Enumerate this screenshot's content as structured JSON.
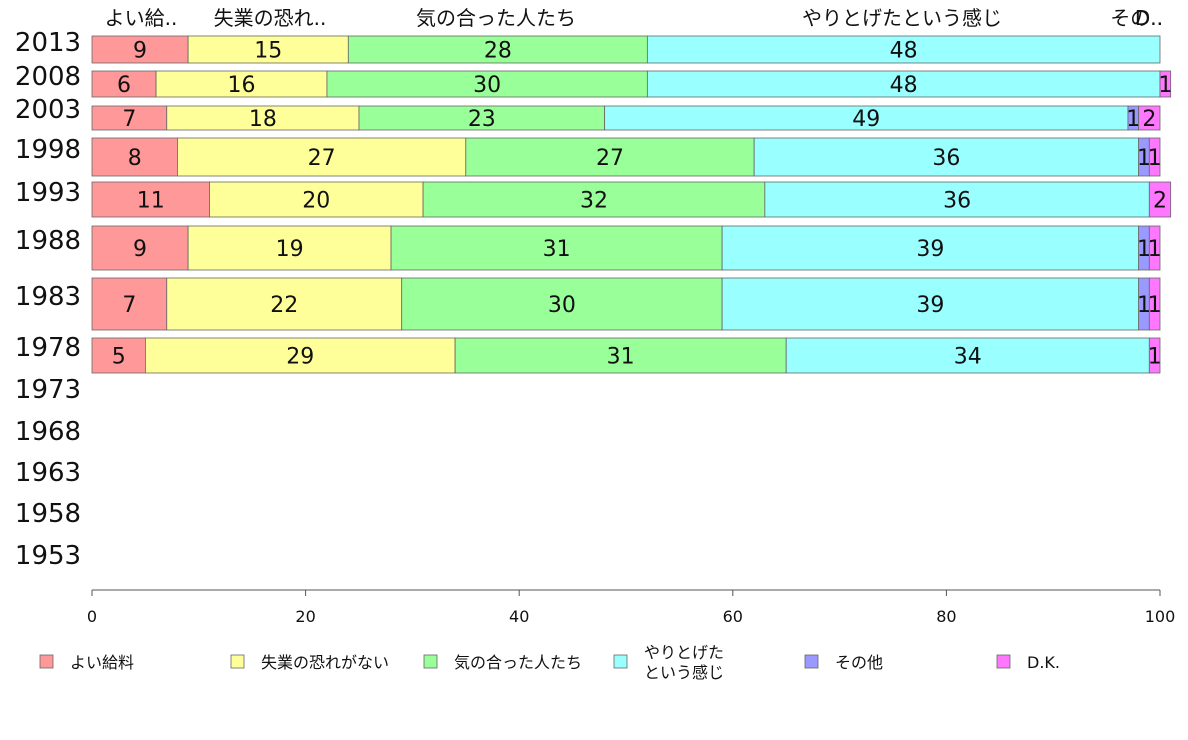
{
  "chart_data": {
    "type": "bar",
    "orientation": "horizontal",
    "stacked": true,
    "years": [
      "2013",
      "2008",
      "2003",
      "1998",
      "1993",
      "1988",
      "1983",
      "1978",
      "1973",
      "1968",
      "1963",
      "1958",
      "1953"
    ],
    "series": [
      {
        "name": "よい給料",
        "color": "#ff9999",
        "values": [
          9,
          6,
          7,
          8,
          11,
          9,
          7,
          5,
          null,
          null,
          null,
          null,
          null
        ]
      },
      {
        "name": "失業の恐れがない",
        "color": "#ffff99",
        "values": [
          15,
          16,
          18,
          27,
          20,
          19,
          22,
          29,
          null,
          null,
          null,
          null,
          null
        ]
      },
      {
        "name": "気の合った人たち",
        "color": "#99ff99",
        "values": [
          28,
          30,
          23,
          27,
          32,
          31,
          30,
          31,
          null,
          null,
          null,
          null,
          null
        ]
      },
      {
        "name": "やりとげたという感じ",
        "color": "#99ffff",
        "values": [
          48,
          48,
          49,
          36,
          36,
          39,
          39,
          34,
          null,
          null,
          null,
          null,
          null
        ]
      },
      {
        "name": "その他",
        "color": "#9999ff",
        "values": [
          0,
          0,
          1,
          1,
          0,
          1,
          1,
          0,
          null,
          null,
          null,
          null,
          null
        ]
      },
      {
        "name": "D.K.",
        "color": "#ff77ff",
        "values": [
          0,
          1,
          2,
          1,
          2,
          1,
          1,
          1,
          null,
          null,
          null,
          null,
          null
        ]
      }
    ],
    "value_labels": [
      [
        "9",
        "6",
        "7",
        "8",
        "11",
        "9",
        "7",
        "5"
      ],
      [
        "15",
        "16",
        "18",
        "27",
        "20",
        "19",
        "22",
        "29"
      ],
      [
        "28",
        "30",
        "23",
        "27",
        "32",
        "31",
        "30",
        "31"
      ],
      [
        "48",
        "48",
        "49",
        "36",
        "36",
        "39",
        "39",
        "34"
      ],
      [
        "",
        "",
        "1",
        "1",
        "",
        "1",
        "1",
        ""
      ],
      [
        "",
        "1",
        "2",
        "1",
        "2",
        "1",
        "1",
        "1"
      ]
    ],
    "top_labels": [
      "よい給..",
      "失業の恐れ..",
      "気の合った人たち",
      "やりとげたという感じ",
      "その..",
      "D.."
    ],
    "legend_labels": [
      [
        "よい給料"
      ],
      [
        "失業の恐れがない"
      ],
      [
        "気の合った人たち"
      ],
      [
        "やりとげた",
        "という感じ"
      ],
      [
        "その他"
      ],
      [
        "D.K."
      ]
    ],
    "xlim": [
      0,
      100
    ],
    "xticks": [
      "0",
      "20",
      "40",
      "60",
      "80",
      "100"
    ],
    "legend_position": "bottom",
    "grid": false
  }
}
